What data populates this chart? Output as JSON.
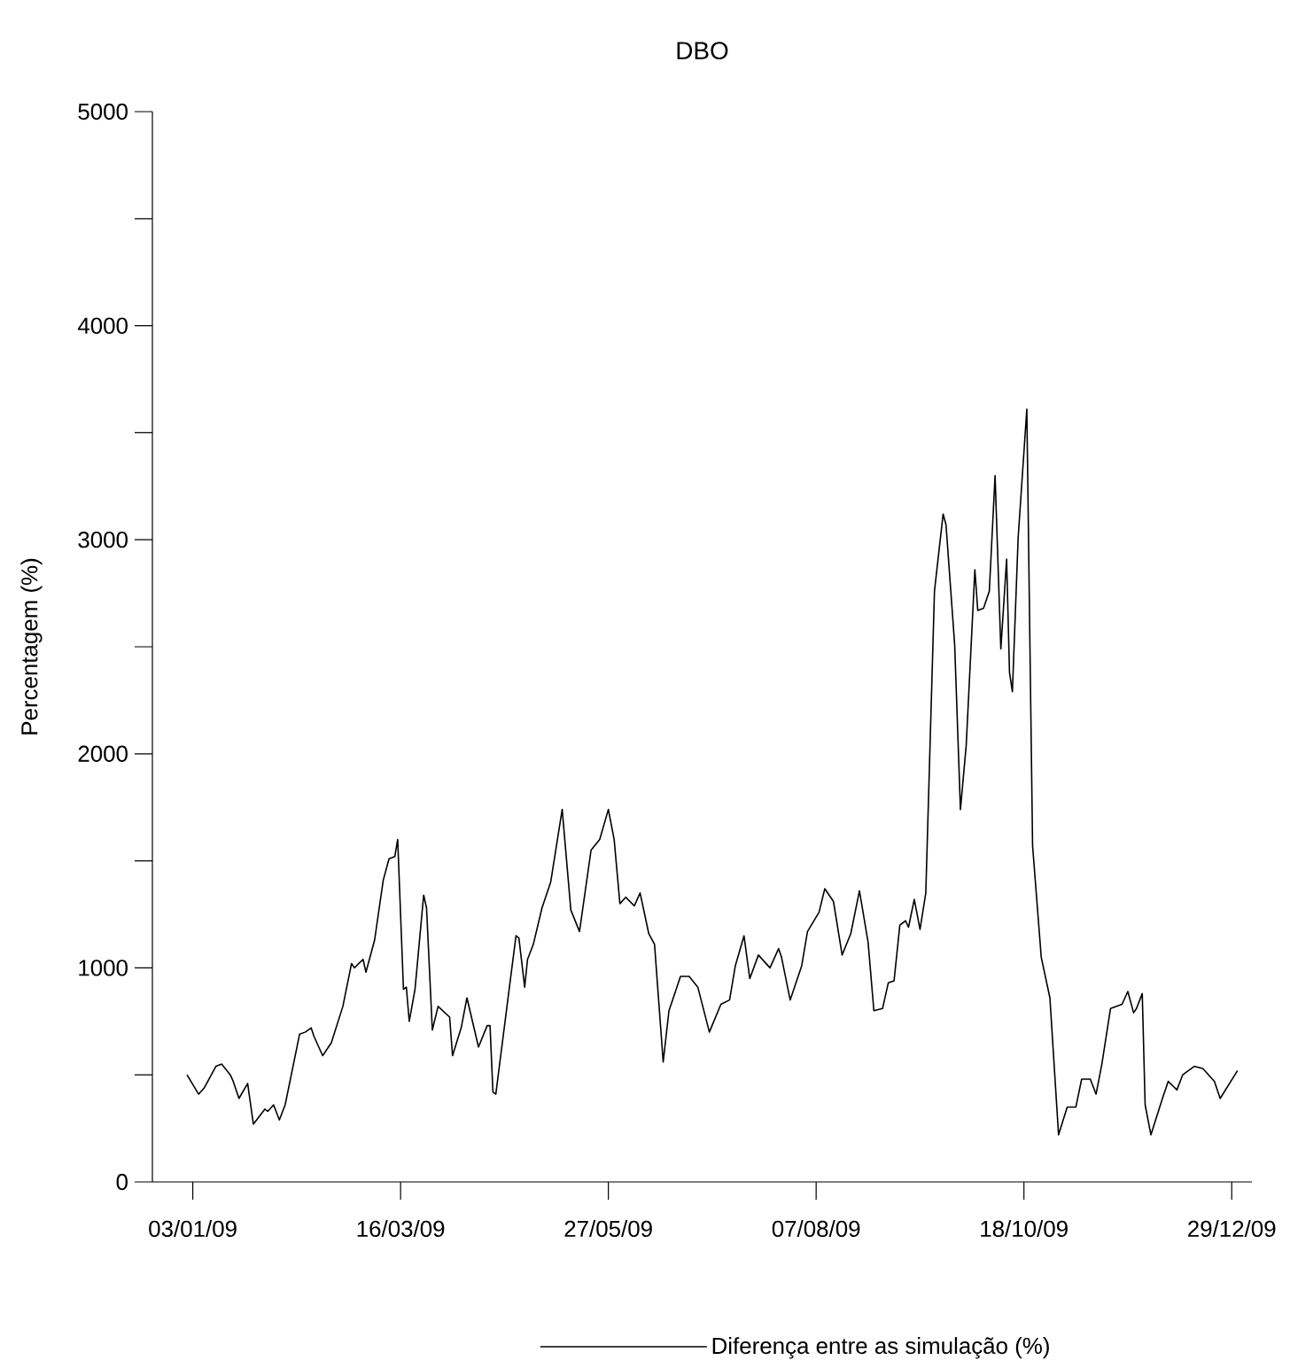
{
  "chart_data": {
    "type": "line",
    "title": "DBO",
    "ylabel": "Percentagem (%)",
    "x": [
      "2009-01-01",
      "2009-01-05",
      "2009-01-07",
      "2009-01-11",
      "2009-01-13",
      "2009-01-16",
      "2009-01-17",
      "2009-01-19",
      "2009-01-22",
      "2009-01-24",
      "2009-01-28",
      "2009-01-29",
      "2009-01-31",
      "2009-02-02",
      "2009-02-04",
      "2009-02-09",
      "2009-02-11",
      "2009-02-13",
      "2009-02-14",
      "2009-02-17",
      "2009-02-20",
      "2009-02-24",
      "2009-02-27",
      "2009-02-28",
      "2009-03-03",
      "2009-03-04",
      "2009-03-07",
      "2009-03-10",
      "2009-03-12",
      "2009-03-14",
      "2009-03-15",
      "2009-03-17",
      "2009-03-18",
      "2009-03-19",
      "2009-03-21",
      "2009-03-24",
      "2009-03-25",
      "2009-03-27",
      "2009-03-29",
      "2009-04-02",
      "2009-04-03",
      "2009-04-06",
      "2009-04-08",
      "2009-04-12",
      "2009-04-15",
      "2009-04-16",
      "2009-04-17",
      "2009-04-18",
      "2009-04-23",
      "2009-04-25",
      "2009-04-26",
      "2009-04-28",
      "2009-04-29",
      "2009-05-01",
      "2009-05-04",
      "2009-05-07",
      "2009-05-11",
      "2009-05-14",
      "2009-05-17",
      "2009-05-21",
      "2009-05-24",
      "2009-05-27",
      "2009-05-29",
      "2009-05-31",
      "2009-06-02",
      "2009-06-05",
      "2009-06-07",
      "2009-06-10",
      "2009-06-12",
      "2009-06-15",
      "2009-06-17",
      "2009-06-21",
      "2009-06-24",
      "2009-06-27",
      "2009-07-01",
      "2009-07-05",
      "2009-07-08",
      "2009-07-10",
      "2009-07-13",
      "2009-07-15",
      "2009-07-18",
      "2009-07-22",
      "2009-07-25",
      "2009-07-26",
      "2009-07-29",
      "2009-08-02",
      "2009-08-04",
      "2009-08-08",
      "2009-08-10",
      "2009-08-13",
      "2009-08-16",
      "2009-08-19",
      "2009-08-22",
      "2009-08-25",
      "2009-08-27",
      "2009-08-30",
      "2009-09-01",
      "2009-09-03",
      "2009-09-05",
      "2009-09-07",
      "2009-09-08",
      "2009-09-10",
      "2009-09-12",
      "2009-09-14",
      "2009-09-17",
      "2009-09-20",
      "2009-09-21",
      "2009-09-24",
      "2009-09-26",
      "2009-09-28",
      "2009-10-01",
      "2009-10-02",
      "2009-10-04",
      "2009-10-06",
      "2009-10-08",
      "2009-10-10",
      "2009-10-12",
      "2009-10-13",
      "2009-10-14",
      "2009-10-16",
      "2009-10-19",
      "2009-10-21",
      "2009-10-24",
      "2009-10-27",
      "2009-10-30",
      "2009-11-02",
      "2009-11-05",
      "2009-11-07",
      "2009-11-10",
      "2009-11-12",
      "2009-11-14",
      "2009-11-17",
      "2009-11-21",
      "2009-11-23",
      "2009-11-25",
      "2009-11-26",
      "2009-11-28",
      "2009-11-29",
      "2009-12-01",
      "2009-12-05",
      "2009-12-07",
      "2009-12-10",
      "2009-12-12",
      "2009-12-16",
      "2009-12-19",
      "2009-12-23",
      "2009-12-25",
      "2009-12-31"
    ],
    "series": [
      {
        "name": "Diferença entre as simulação (%)",
        "color": "#000000",
        "values": [
          500,
          410,
          440,
          540,
          550,
          500,
          470,
          390,
          460,
          270,
          340,
          330,
          360,
          290,
          360,
          690,
          700,
          720,
          680,
          590,
          650,
          820,
          1020,
          1000,
          1040,
          980,
          1130,
          1410,
          1510,
          1520,
          1600,
          900,
          910,
          750,
          900,
          1340,
          1280,
          710,
          820,
          770,
          590,
          720,
          860,
          630,
          730,
          730,
          420,
          410,
          940,
          1150,
          1140,
          910,
          1040,
          1110,
          1280,
          1400,
          1740,
          1270,
          1170,
          1550,
          1600,
          1740,
          1600,
          1300,
          1330,
          1290,
          1350,
          1160,
          1110,
          560,
          800,
          960,
          960,
          910,
          700,
          830,
          850,
          1010,
          1150,
          950,
          1060,
          1000,
          1090,
          1050,
          850,
          1010,
          1170,
          1260,
          1370,
          1310,
          1060,
          1160,
          1360,
          1120,
          800,
          810,
          930,
          940,
          1200,
          1220,
          1190,
          1320,
          1180,
          1350,
          2760,
          3120,
          3070,
          2510,
          1740,
          2040,
          2860,
          2670,
          2680,
          2760,
          3300,
          2490,
          2910,
          2380,
          2290,
          3010,
          3610,
          1570,
          1050,
          860,
          220,
          350,
          350,
          480,
          480,
          410,
          550,
          810,
          830,
          890,
          790,
          810,
          880,
          360,
          220,
          390,
          470,
          430,
          500,
          540,
          530,
          470,
          390,
          520
        ]
      }
    ],
    "xlim": [
      "2008-12-20",
      "2010-01-05"
    ],
    "ylim": [
      0,
      5000
    ],
    "xticks": [
      {
        "value": "2009-01-03",
        "label": "03/01/09"
      },
      {
        "value": "2009-03-16",
        "label": "16/03/09"
      },
      {
        "value": "2009-05-27",
        "label": "27/05/09"
      },
      {
        "value": "2009-08-07",
        "label": "07/08/09"
      },
      {
        "value": "2009-10-18",
        "label": "18/10/09"
      },
      {
        "value": "2009-12-29",
        "label": "29/12/09"
      }
    ],
    "yticks": [
      0,
      {
        "value": 500,
        "label": null
      },
      1000,
      {
        "value": 1500,
        "label": null
      },
      2000,
      {
        "value": 2500,
        "label": null
      },
      3000,
      {
        "value": 3500,
        "label": null
      },
      4000,
      {
        "value": 4500,
        "label": null
      },
      5000
    ],
    "grid": false,
    "legend": "bottom",
    "marker": "none",
    "line_style": "solid"
  }
}
